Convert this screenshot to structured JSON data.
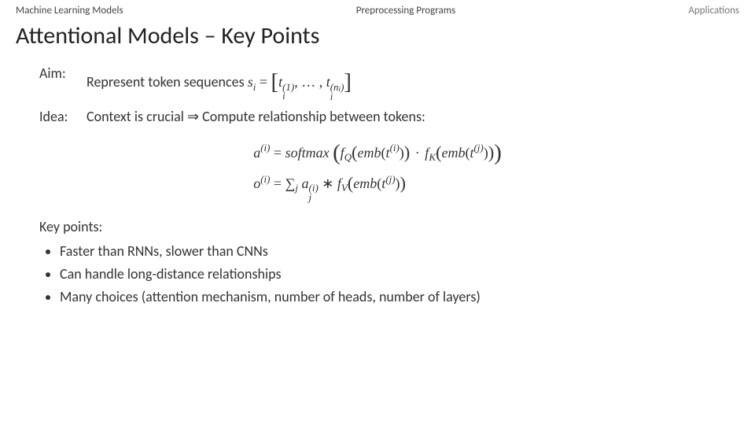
{
  "nav": {
    "left": "Machine Learning Models",
    "center": "Preprocessing Programs",
    "right": "Applications"
  },
  "title": "Attentional Models – Key Points",
  "aim": {
    "label": "Aim:",
    "text_prefix": "Represent token sequences ",
    "math": {
      "s": "s",
      "i": "i",
      "eq": " = ",
      "lbrack": "[",
      "t": "t",
      "sup1": "(1)",
      "dots": ", … , ",
      "supn": "(n",
      "supn_sub": "i",
      "supn_close": ")",
      "rbrack": "]"
    }
  },
  "idea": {
    "label": "Idea:",
    "text": "Context is crucial ⇒ Compute relationship between tokens:"
  },
  "equations": {
    "a": "a",
    "o": "o",
    "sup_i": "(i)",
    "sup_j": "(j)",
    "eq": " = ",
    "softmax": "softmax",
    "fQ": "f",
    "Q": "Q",
    "fK": "f",
    "K": "K",
    "fV": "f",
    "V": "V",
    "emb": "emb",
    "t": "t",
    "dot": "·",
    "sum": "∑",
    "j": "j",
    "star": " ∗ ",
    "sub_j": "j",
    "aj_sup": "(i)"
  },
  "keypoints": {
    "label": "Key points:",
    "items": [
      "Faster than RNNs, slower than CNNs",
      "Can handle long-distance relationships",
      "Many choices (attention mechanism, number of heads, number of layers)"
    ]
  },
  "colors": {
    "background": "#ffffff",
    "text": "#222222",
    "nav_right": "#777777"
  },
  "typography": {
    "title_fontsize": 30,
    "body_fontsize": 18,
    "nav_fontsize": 13,
    "math_font": "Cambria Math"
  }
}
